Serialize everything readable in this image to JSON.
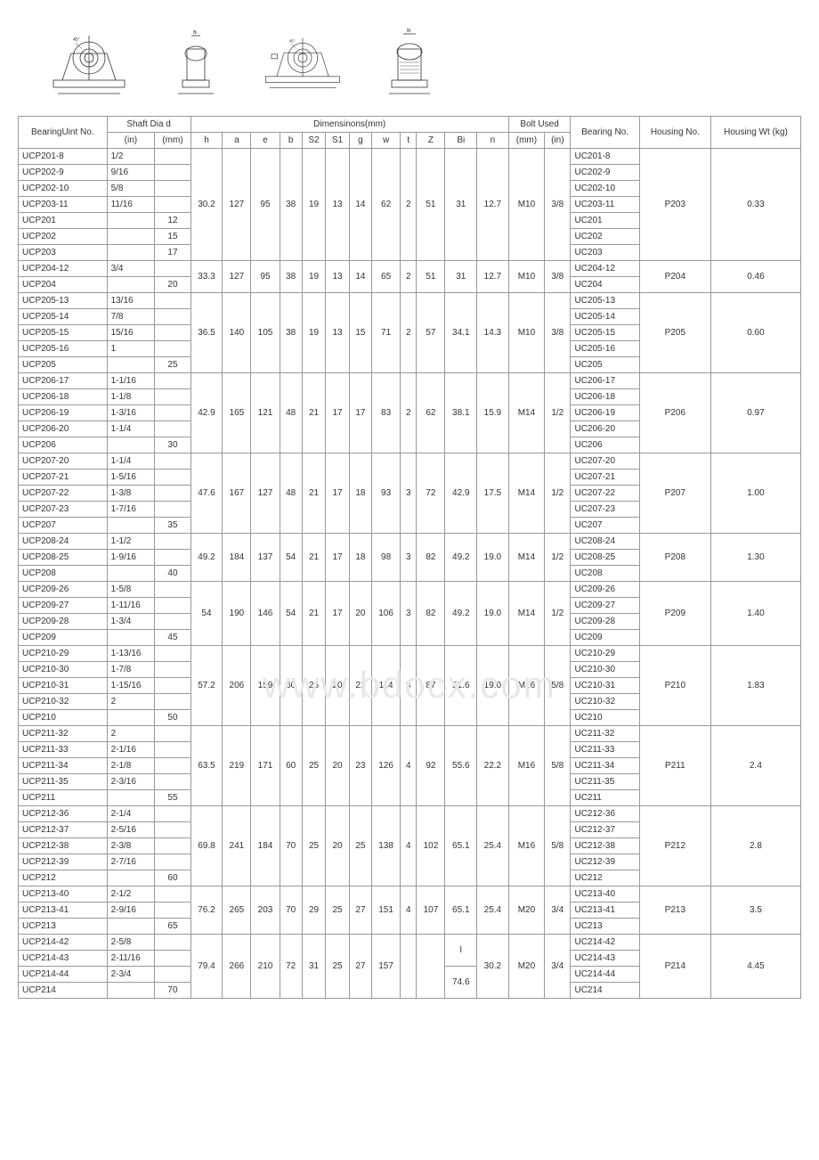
{
  "watermark": "www.bdocx.com",
  "header": {
    "col_unitno": "BearingUint No.",
    "col_shaft": "Shaft Dia d",
    "col_shaft_in": "(in)",
    "col_shaft_mm": "(mm)",
    "col_dim": "Dimensinons(mm)",
    "col_h": "h",
    "col_a": "a",
    "col_e": "e",
    "col_b": "b",
    "col_s2": "S2",
    "col_s1": "S1",
    "col_g": "g",
    "col_w": "w",
    "col_t": "t",
    "col_z": "Z",
    "col_bi": "Bi",
    "col_n": "n",
    "col_bolt": "Bolt Used",
    "col_bolt_mm": "(mm)",
    "col_bolt_in": "(in)",
    "col_bearing": "Bearing No.",
    "col_housing": "Housing No.",
    "col_wt": "Housing Wt (kg)"
  },
  "groups": [
    {
      "rows": [
        {
          "unit": "UCP201-8",
          "in": "1/2",
          "mm": "",
          "bearing": "UC201-8"
        },
        {
          "unit": "UCP202-9",
          "in": "9/16",
          "mm": "",
          "bearing": "UC202-9"
        },
        {
          "unit": "UCP202-10",
          "in": "5/8",
          "mm": "",
          "bearing": "UC202-10"
        },
        {
          "unit": "UCP203-11",
          "in": "11/16",
          "mm": "",
          "bearing": "UC203-11"
        },
        {
          "unit": "UCP201",
          "in": "",
          "mm": "12",
          "bearing": "UC201"
        },
        {
          "unit": "UCP202",
          "in": "",
          "mm": "15",
          "bearing": "UC202"
        },
        {
          "unit": "UCP203",
          "in": "",
          "mm": "17",
          "bearing": "UC203"
        }
      ],
      "h": "30.2",
      "a": "127",
      "e": "95",
      "b": "38",
      "s2": "19",
      "s1": "13",
      "g": "14",
      "w": "62",
      "t": "2",
      "z": "51",
      "bi": "31",
      "n": "12.7",
      "bolt_mm": "M10",
      "bolt_in": "3/8",
      "housing": "P203",
      "wt": "0.33"
    },
    {
      "rows": [
        {
          "unit": "UCP204-12",
          "in": "3/4",
          "mm": "",
          "bearing": "UC204-12"
        },
        {
          "unit": "UCP204",
          "in": "",
          "mm": "20",
          "bearing": "UC204"
        }
      ],
      "h": "33.3",
      "a": "127",
      "e": "95",
      "b": "38",
      "s2": "19",
      "s1": "13",
      "g": "14",
      "w": "65",
      "t": "2",
      "z": "51",
      "bi": "31",
      "n": "12.7",
      "bolt_mm": "M10",
      "bolt_in": "3/8",
      "housing": "P204",
      "wt": "0.46"
    },
    {
      "rows": [
        {
          "unit": "UCP205-13",
          "in": "13/16",
          "mm": "",
          "bearing": "UC205-13"
        },
        {
          "unit": "UCP205-14",
          "in": "7/8",
          "mm": "",
          "bearing": "UC205-14"
        },
        {
          "unit": "UCP205-15",
          "in": "15/16",
          "mm": "",
          "bearing": "UC205-15"
        },
        {
          "unit": "UCP205-16",
          "in": "1",
          "mm": "",
          "bearing": "UC205-16"
        },
        {
          "unit": "UCP205",
          "in": "",
          "mm": "25",
          "bearing": "UC205"
        }
      ],
      "h": "36.5",
      "a": "140",
      "e": "105",
      "b": "38",
      "s2": "19",
      "s1": "13",
      "g": "15",
      "w": "71",
      "t": "2",
      "z": "57",
      "bi": "34.1",
      "n": "14.3",
      "bolt_mm": "M10",
      "bolt_in": "3/8",
      "housing": "P205",
      "wt": "0.60"
    },
    {
      "rows": [
        {
          "unit": "UCP206-17",
          "in": "1-1/16",
          "mm": "",
          "bearing": "UC206-17"
        },
        {
          "unit": "UCP206-18",
          "in": "1-1/8",
          "mm": "",
          "bearing": "UC206-18"
        },
        {
          "unit": "UCP206-19",
          "in": "1-3/16",
          "mm": "",
          "bearing": "UC206-19"
        },
        {
          "unit": "UCP206-20",
          "in": "1-1/4",
          "mm": "",
          "bearing": "UC206-20"
        },
        {
          "unit": "UCP206",
          "in": "",
          "mm": "30",
          "bearing": "UC206"
        }
      ],
      "h": "42.9",
      "a": "165",
      "e": "121",
      "b": "48",
      "s2": "21",
      "s1": "17",
      "g": "17",
      "w": "83",
      "t": "2",
      "z": "62",
      "bi": "38.1",
      "n": "15.9",
      "bolt_mm": "M14",
      "bolt_in": "1/2",
      "housing": "P206",
      "wt": "0.97"
    },
    {
      "rows": [
        {
          "unit": "UCP207-20",
          "in": "1-1/4",
          "mm": "",
          "bearing": "UC207-20"
        },
        {
          "unit": "UCP207-21",
          "in": "1-5/16",
          "mm": "",
          "bearing": "UC207-21"
        },
        {
          "unit": "UCP207-22",
          "in": "1-3/8",
          "mm": "",
          "bearing": "UC207-22"
        },
        {
          "unit": "UCP207-23",
          "in": "1-7/16",
          "mm": "",
          "bearing": "UC207-23"
        },
        {
          "unit": "UCP207",
          "in": "",
          "mm": "35",
          "bearing": "UC207"
        }
      ],
      "h": "47.6",
      "a": "167",
      "e": "127",
      "b": "48",
      "s2": "21",
      "s1": "17",
      "g": "18",
      "w": "93",
      "t": "3",
      "z": "72",
      "bi": "42.9",
      "n": "17.5",
      "bolt_mm": "M14",
      "bolt_in": "1/2",
      "housing": "P207",
      "wt": "1.00"
    },
    {
      "rows": [
        {
          "unit": "UCP208-24",
          "in": "1-1/2",
          "mm": "",
          "bearing": "UC208-24"
        },
        {
          "unit": "UCP208-25",
          "in": "1-9/16",
          "mm": "",
          "bearing": "UC208-25"
        },
        {
          "unit": "UCP208",
          "in": "",
          "mm": "40",
          "bearing": "UC208"
        }
      ],
      "h": "49.2",
      "a": "184",
      "e": "137",
      "b": "54",
      "s2": "21",
      "s1": "17",
      "g": "18",
      "w": "98",
      "t": "3",
      "z": "82",
      "bi": "49.2",
      "n": "19.0",
      "bolt_mm": "M14",
      "bolt_in": "1/2",
      "housing": "P208",
      "wt": "1.30"
    },
    {
      "rows": [
        {
          "unit": "UCP209-26",
          "in": "1-5/8",
          "mm": "",
          "bearing": "UC209-26"
        },
        {
          "unit": "UCP209-27",
          "in": "1-11/16",
          "mm": "",
          "bearing": "UC209-27"
        },
        {
          "unit": "UCP209-28",
          "in": "1-3/4",
          "mm": "",
          "bearing": "UC209-28"
        },
        {
          "unit": "UCP209",
          "in": "",
          "mm": "45",
          "bearing": "UC209"
        }
      ],
      "h": "54",
      "a": "190",
      "e": "146",
      "b": "54",
      "s2": "21",
      "s1": "17",
      "g": "20",
      "w": "106",
      "t": "3",
      "z": "82",
      "bi": "49.2",
      "n": "19.0",
      "bolt_mm": "M14",
      "bolt_in": "1/2",
      "housing": "P209",
      "wt": "1.40"
    },
    {
      "rows": [
        {
          "unit": "UCP210-29",
          "in": "1-13/16",
          "mm": "",
          "bearing": "UC210-29"
        },
        {
          "unit": "UCP210-30",
          "in": "1-7/8",
          "mm": "",
          "bearing": "UC210-30"
        },
        {
          "unit": "UCP210-31",
          "in": "1-15/16",
          "mm": "",
          "bearing": "UC210-31"
        },
        {
          "unit": "UCP210-32",
          "in": "2",
          "mm": "",
          "bearing": "UC210-32"
        },
        {
          "unit": "UCP210",
          "in": "",
          "mm": "50",
          "bearing": "UC210"
        }
      ],
      "h": "57.2",
      "a": "206",
      "e": "159",
      "b": "60",
      "s2": "25",
      "s1": "20",
      "g": "21",
      "w": "114",
      "t": "3",
      "z": "87",
      "bi": "51.6",
      "n": "19.0",
      "bolt_mm": "M16",
      "bolt_in": "5/8",
      "housing": "P210",
      "wt": "1.83"
    },
    {
      "rows": [
        {
          "unit": "UCP211-32",
          "in": "2",
          "mm": "",
          "bearing": "UC211-32"
        },
        {
          "unit": "UCP211-33",
          "in": "2-1/16",
          "mm": "",
          "bearing": "UC211-33"
        },
        {
          "unit": "UCP211-34",
          "in": "2-1/8",
          "mm": "",
          "bearing": "UC211-34"
        },
        {
          "unit": "UCP211-35",
          "in": "2-3/16",
          "mm": "",
          "bearing": "UC211-35"
        },
        {
          "unit": "UCP211",
          "in": "",
          "mm": "55",
          "bearing": "UC211"
        }
      ],
      "h": "63.5",
      "a": "219",
      "e": "171",
      "b": "60",
      "s2": "25",
      "s1": "20",
      "g": "23",
      "w": "126",
      "t": "4",
      "z": "92",
      "bi": "55.6",
      "n": "22.2",
      "bolt_mm": "M16",
      "bolt_in": "5/8",
      "housing": "P211",
      "wt": "2.4"
    },
    {
      "rows": [
        {
          "unit": "UCP212-36",
          "in": "2-1/4",
          "mm": "",
          "bearing": "UC212-36"
        },
        {
          "unit": "UCP212-37",
          "in": "2-5/16",
          "mm": "",
          "bearing": "UC212-37"
        },
        {
          "unit": "UCP212-38",
          "in": "2-3/8",
          "mm": "",
          "bearing": "UC212-38"
        },
        {
          "unit": "UCP212-39",
          "in": "2-7/16",
          "mm": "",
          "bearing": "UC212-39"
        },
        {
          "unit": "UCP212",
          "in": "",
          "mm": "60",
          "bearing": "UC212"
        }
      ],
      "h": "69.8",
      "a": "241",
      "e": "184",
      "b": "70",
      "s2": "25",
      "s1": "20",
      "g": "25",
      "w": "138",
      "t": "4",
      "z": "102",
      "bi": "65.1",
      "n": "25.4",
      "bolt_mm": "M16",
      "bolt_in": "5/8",
      "housing": "P212",
      "wt": "2.8"
    },
    {
      "rows": [
        {
          "unit": "UCP213-40",
          "in": "2-1/2",
          "mm": "",
          "bearing": "UC213-40"
        },
        {
          "unit": "UCP213-41",
          "in": "2-9/16",
          "mm": "",
          "bearing": "UC213-41"
        },
        {
          "unit": "UCP213",
          "in": "",
          "mm": "65",
          "bearing": "UC213"
        }
      ],
      "h": "76.2",
      "a": "265",
      "e": "203",
      "b": "70",
      "s2": "29",
      "s1": "25",
      "g": "27",
      "w": "151",
      "t": "4",
      "z": "107",
      "bi": "65.1",
      "n": "25.4",
      "bolt_mm": "M20",
      "bolt_in": "3/4",
      "housing": "P213",
      "wt": "3.5"
    },
    {
      "rows": [
        {
          "unit": "UCP214-42",
          "in": "2-5/8",
          "mm": "",
          "bearing": "UC214-42"
        },
        {
          "unit": "UCP214-43",
          "in": "2-11/16",
          "mm": "",
          "bearing": "UC214-43"
        },
        {
          "unit": "UCP214-44",
          "in": "2-3/4",
          "mm": "",
          "bearing": "UC214-44"
        },
        {
          "unit": "UCP214",
          "in": "",
          "mm": "70",
          "bearing": "UC214"
        }
      ],
      "h": "79.4",
      "a": "266",
      "e": "210",
      "b": "72",
      "s2": "31",
      "s1": "25",
      "g": "27",
      "w": "157",
      "t": "",
      "z": "",
      "bi": "74.6",
      "n": "30.2",
      "bolt_mm": "M20",
      "bolt_in": "3/4",
      "housing": "P214",
      "wt": "4.45",
      "bi_split": "I"
    }
  ]
}
